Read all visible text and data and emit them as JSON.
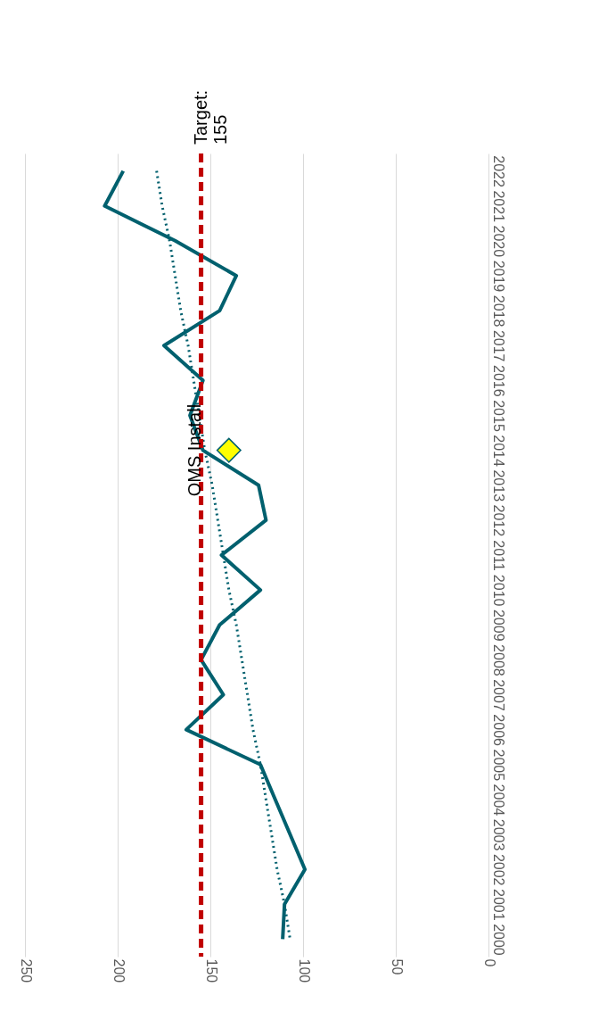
{
  "chart_data": {
    "type": "line",
    "orientation": "horizontal",
    "categories": [
      "2022",
      "2021",
      "2020",
      "2019",
      "2018",
      "2017",
      "2016",
      "2015",
      "2014",
      "2013",
      "2012",
      "2011",
      "2010",
      "2009",
      "2008",
      "2007",
      "2006",
      "2005",
      "2004",
      "2003",
      "2002",
      "2001",
      "2000"
    ],
    "series": [
      {
        "type": "line",
        "color": "#00606e",
        "values": [
          197,
          207,
          169,
          136,
          145,
          175,
          154,
          161,
          154,
          124,
          120,
          144,
          123,
          145,
          155,
          143,
          163,
          123,
          115,
          107,
          99,
          110,
          111
        ]
      },
      {
        "type": "line",
        "color": "#00606e",
        "line_style": "dotted",
        "values": [
          179,
          176,
          172,
          169,
          166,
          162,
          159,
          156,
          153,
          149,
          146,
          143,
          140,
          136,
          133,
          130,
          127,
          123,
          120,
          117,
          114,
          110,
          107
        ]
      },
      {
        "type": "scatter",
        "color": "#ffff00",
        "marker": "diamond",
        "values": [
          null,
          null,
          null,
          null,
          null,
          null,
          null,
          null,
          140,
          null,
          null,
          null,
          null,
          null,
          null,
          null,
          null,
          null,
          null,
          null,
          null,
          null,
          null
        ]
      }
    ],
    "xlim": [
      250,
      0
    ],
    "xticks": [
      0,
      50,
      100,
      150,
      200,
      250
    ],
    "grid": "x",
    "ref_lines": [
      {
        "axis": "x",
        "value": 155,
        "label": "Target: 155",
        "color": "#c00000",
        "line_style": "dashed"
      }
    ],
    "annotations": [
      "OMS Install"
    ]
  }
}
